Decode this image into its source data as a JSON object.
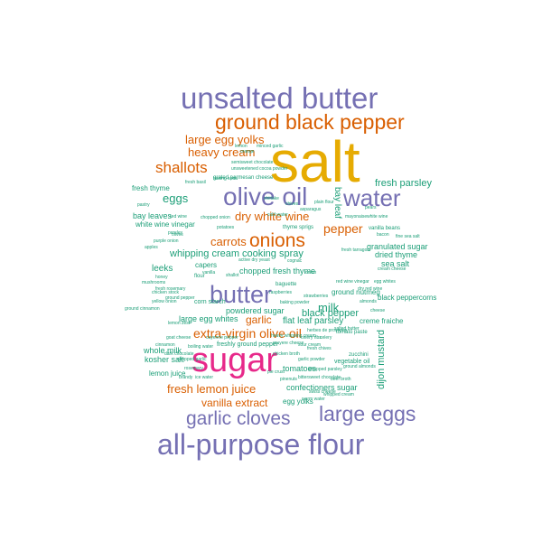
{
  "palette": {
    "teal": "#1b9e77",
    "orange": "#d95f02",
    "purple": "#7570b3",
    "magenta": "#e7298a",
    "gold": "#e6ab02"
  },
  "words": {
    "salt": "salt",
    "unsalted_butter": "unsalted butter",
    "ground_black_pepper": "ground black pepper",
    "large_egg_yolks": "large egg yolks",
    "heavy_cream": "heavy cream",
    "shallots": "shallots",
    "olive_oil": "olive oil",
    "water": "water",
    "fresh_parsley": "fresh parsley",
    "eggs": "eggs",
    "fresh_thyme": "fresh thyme",
    "dry_white_wine": "dry white wine",
    "bay_leaf": "bay leaf",
    "pepper": "pepper",
    "bay_leaves": "bay leaves",
    "white_wine_vinegar": "white wine vinegar",
    "carrots": "carrots",
    "onions": "onions",
    "granulated_sugar": "granulated sugar",
    "whipping_cream": "whipping cream",
    "cooking_spray": "cooking spray",
    "dried_thyme": "dried thyme",
    "sea_salt": "sea salt",
    "leeks": "leeks",
    "capers": "capers",
    "chopped_fresh_thyme": "chopped fresh thyme",
    "butter": "butter",
    "milk": "milk",
    "ground_nutmeg": "ground nutmeg",
    "black_peppercorns": "black peppercorns",
    "powdered_sugar": "powdered sugar",
    "flat_leaf_parsley": "flat leaf parsley",
    "large_egg_whites": "large egg whites",
    "garlic": "garlic",
    "black_pepper": "black pepper",
    "extra_virgin_olive_oil": "extra-virgin olive oil",
    "creme_fraiche": "creme fraiche",
    "whole_milk": "whole milk",
    "kosher_salt": "kosher salt",
    "sugar": "sugar",
    "lemon_juice": "lemon juice",
    "dijon_mustard": "dijon mustard",
    "tomatoes": "tomatoes",
    "fresh_lemon_juice": "fresh lemon juice",
    "confectioners_sugar": "confectioners sugar",
    "vanilla_extract": "vanilla extract",
    "garlic_cloves": "garlic cloves",
    "large_eggs": "large eggs",
    "all_purpose_flour": "all-purpose flour",
    "corn_starch": "corn starch",
    "freshly_ground_pepper": "freshly ground pepper",
    "chopped_parsley": "chopped parsley",
    "egg_yolks": "egg yolks",
    "vegetable_oil": "vegetable oil",
    "baguette": "baguette",
    "zucchini": "zucchini",
    "flour": "flour",
    "vanilla_beans": "vanilla beans",
    "grated_parmesan_cheese": "grated parmesan cheese",
    "purple_onion": "purple onion",
    "mushrooms": "mushrooms",
    "honey": "honey",
    "fresh_rosemary": "fresh rosemary",
    "thyme_sprigs": "thyme sprigs",
    "tomato_paste": "tomato paste",
    "cognac": "cognac",
    "egg_whites": "egg whites",
    "fine_sea_salt": "fine sea salt",
    "bacon": "bacon",
    "chopped_onion": "chopped onion",
    "chicken_stock": "chicken stock",
    "red_wine": "red wine",
    "fresh_tarragon": "fresh tarragon",
    "white_wine": "white wine",
    "dry_red_wine": "dry red wine",
    "salted_butter": "salted butter",
    "ground_cinnamon": "ground cinnamon",
    "cream_cheese": "cream cheese",
    "cheese": "cheese",
    "plain_flour": "plain flour",
    "celery_ribs": "celery ribs",
    "ground_pepper": "ground pepper",
    "olives": "olives",
    "pastry": "pastry",
    "chicken_broth": "chicken broth",
    "fresh_chives": "fresh chives",
    "baking_powder": "baking powder",
    "red_wine_vinegar": "red wine vinegar",
    "sour_cream": "sour cream",
    "celery": "celery",
    "potatoes": "potatoes",
    "cayenne_pepper": "cayenne pepper",
    "gruyere_cheese": "gruyere cheese",
    "semisweet_chocolate": "semisweet chocolate",
    "unsweetened_cocoa_powder": "unsweetened cocoa powder",
    "fresh_basil": "fresh basil",
    "yellow_onion": "yellow onion",
    "apples": "apples",
    "heavy_whipping_cream": "heavy whipping cream",
    "lemon": "lemon",
    "orange": "orange",
    "minced_garlic": "minced garlic",
    "chopped_garlic": "chopped garlic",
    "garlic_powder": "garlic powder",
    "rosemary": "rosemary",
    "vanilla": "vanilla",
    "shallot": "shallot",
    "onion": "onion",
    "baking_soda": "baking soda",
    "almonds": "almonds",
    "pears": "pears",
    "lemon_zest": "lemon zest",
    "herbes_de_provence": "herbes de provence",
    "ground_almonds": "ground almonds",
    "bittersweet_chocolate": "bittersweet chocolate",
    "beef_broth": "beef broth",
    "pie_crust": "pie crust",
    "pinenuts": "pinenuts",
    "swiss_cheese": "swiss cheese",
    "goat_cheese": "goat cheese",
    "brandy": "brandy",
    "ice_water": "ice water",
    "active_dry_yeast": "active dry yeast",
    "whipped_cream": "whipped cream",
    "warm_water": "warm water",
    "parsley": "parsley",
    "cinnamon": "cinnamon",
    "raspberries": "raspberries",
    "strawberries": "strawberries",
    "mayonaise": "mayonaise",
    "chives": "chives",
    "shiitake": "shiitake",
    "asparagus": "asparagus",
    "cold_water": "cold water",
    "boiling_water": "boiling water",
    "dark_chocolate": "dark chocolate"
  }
}
